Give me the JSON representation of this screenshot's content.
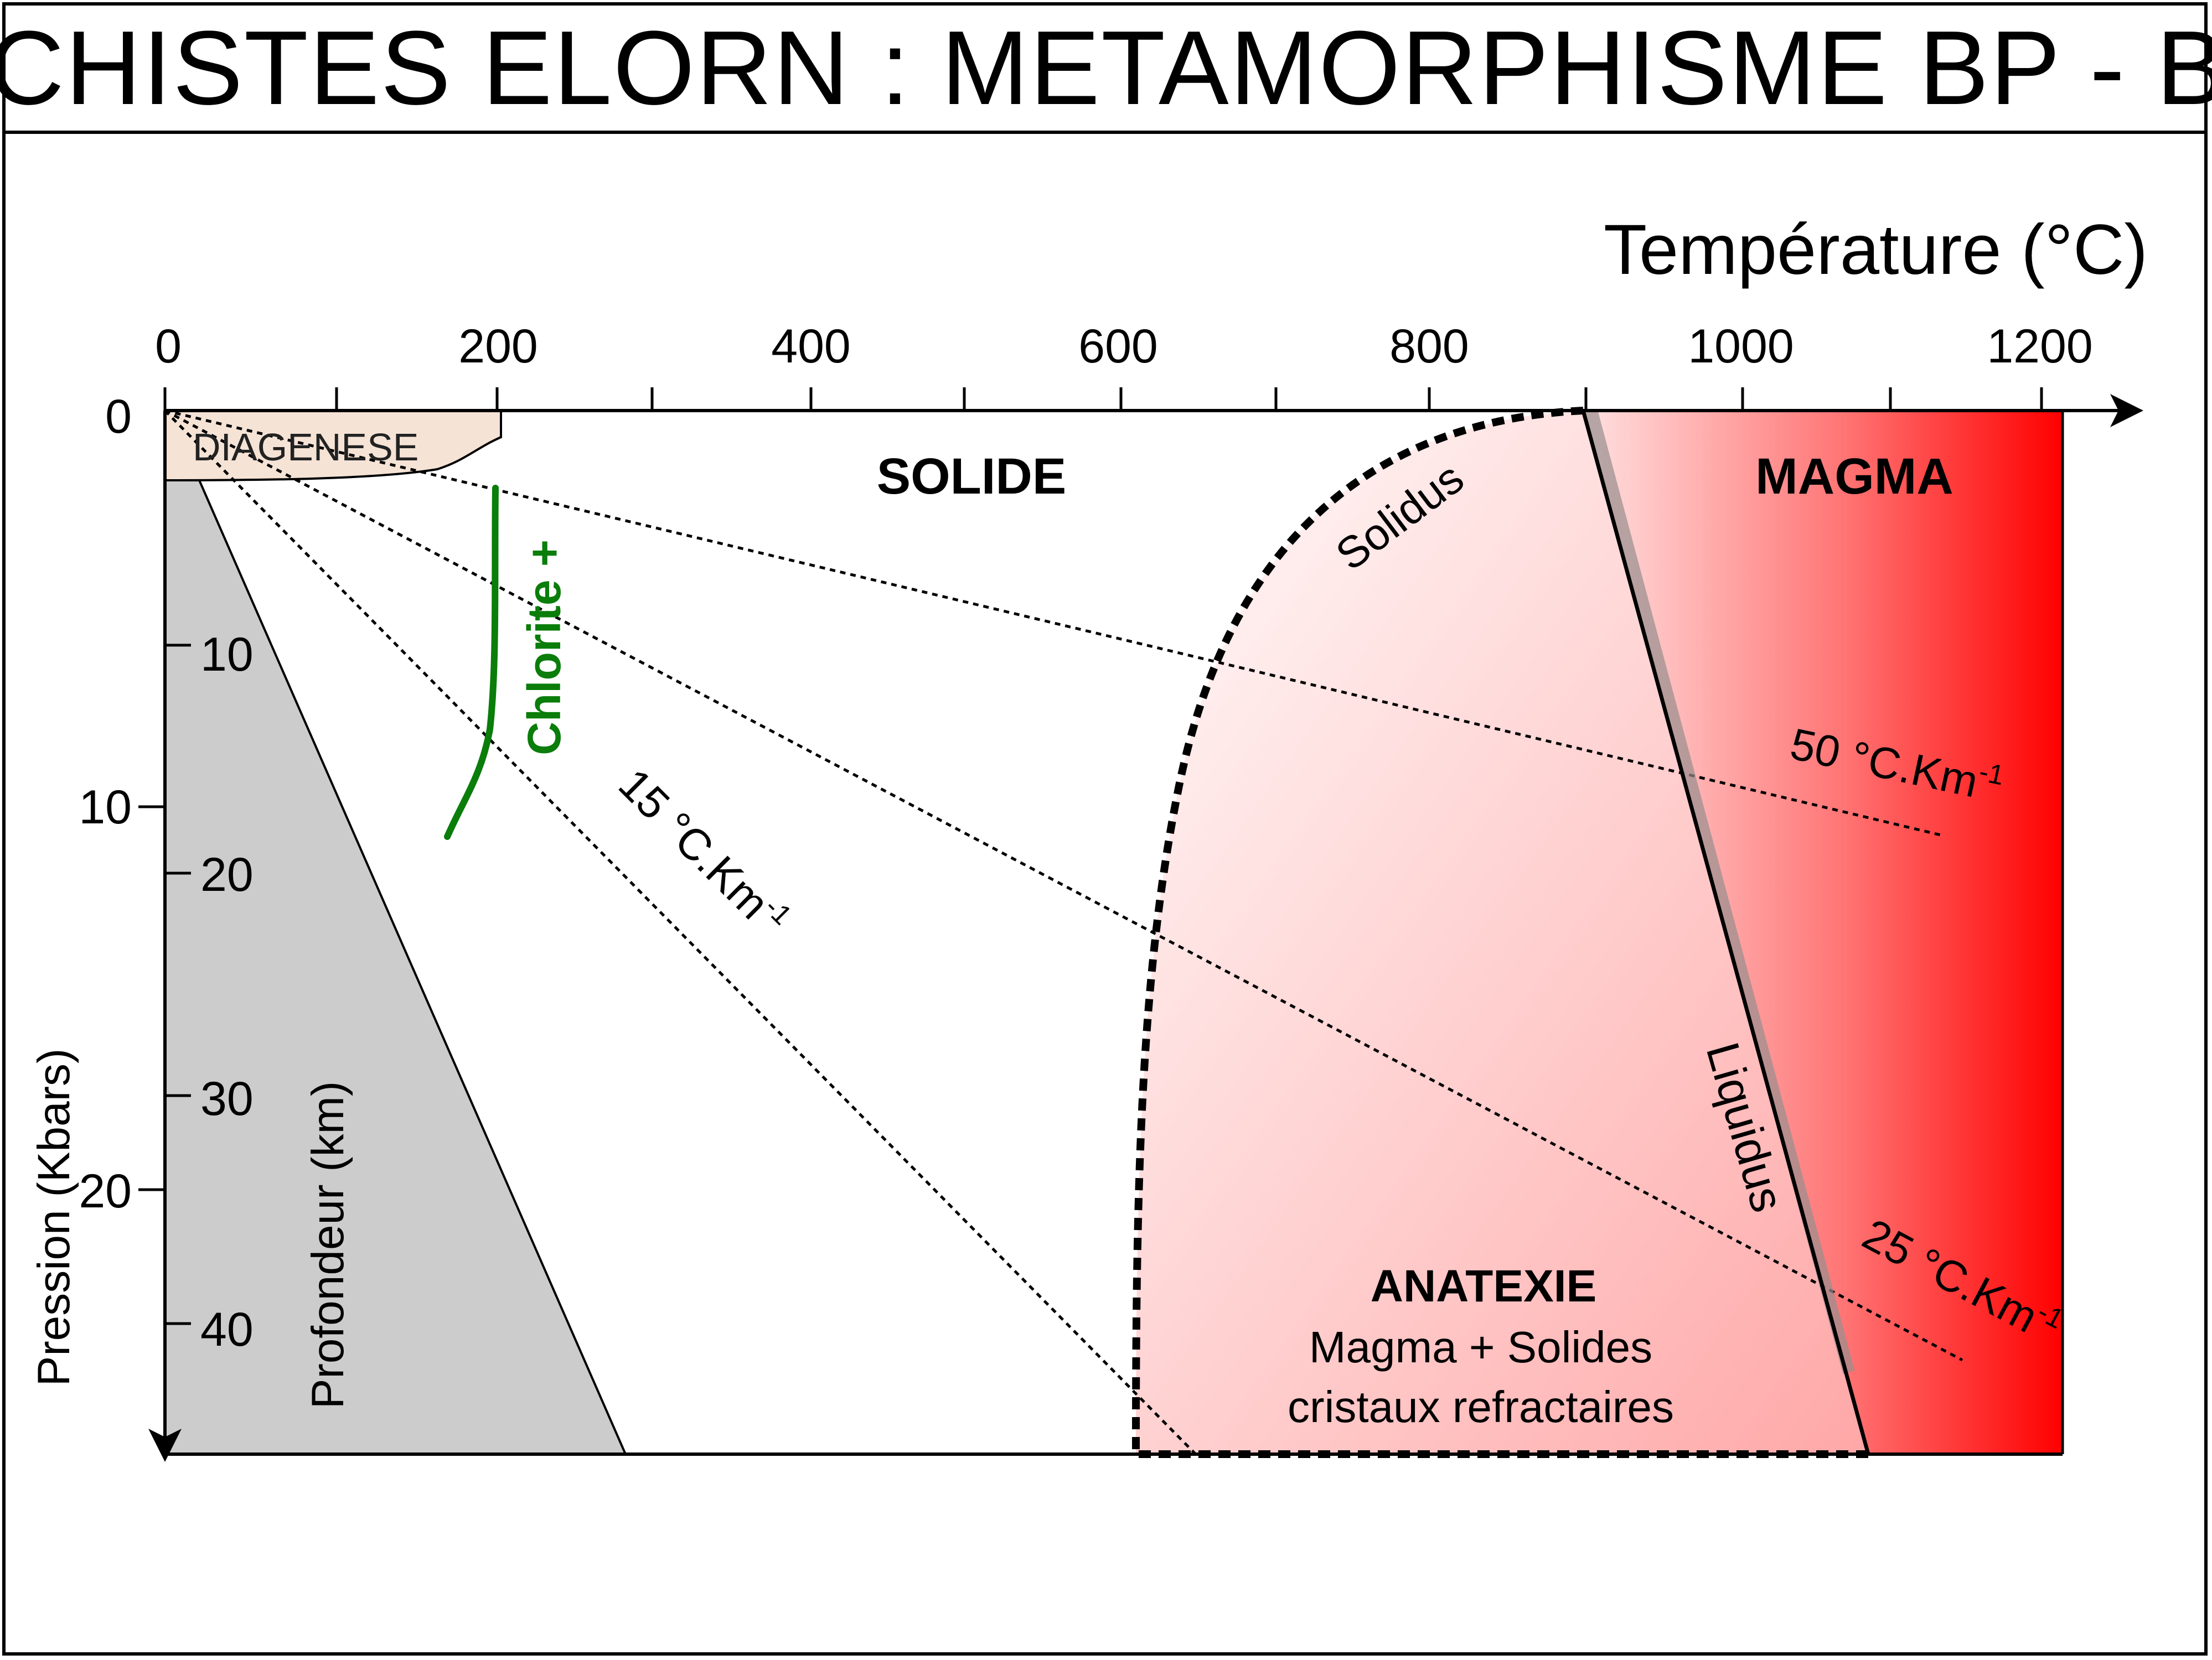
{
  "title": "SCHISTES ELORN : METAMORPHISME BP - BT",
  "axes": {
    "temperature": {
      "label": "Température (°C)",
      "ticks": [
        "0",
        "200",
        "400",
        "600",
        "800",
        "1000",
        "1200"
      ]
    },
    "pressure": {
      "label": "Pression (Kbars)",
      "ticks": [
        "0",
        "10",
        "20"
      ]
    },
    "depth": {
      "label": "Profondeur (km)",
      "ticks": [
        "10",
        "20",
        "30",
        "40"
      ]
    }
  },
  "fields": {
    "diagenese": "DIAGENESE",
    "solide": "SOLIDE",
    "magma": "MAGMA",
    "anatexie_title": "ANATEXIE",
    "anatexie_line1": "Magma + Solides",
    "anatexie_line2": "cristaux refractaires"
  },
  "curves": {
    "solidus": "Solidus",
    "liquidus": "Liquidus",
    "chlorite": "Chlorite +"
  },
  "gradients": [
    {
      "value": "15 °C.Km",
      "sup": "-1"
    },
    {
      "value": "25 °C.Km",
      "sup": "-1"
    },
    {
      "value": "50 °C.Km",
      "sup": "-1"
    }
  ],
  "colors": {
    "magma_red": "#ff0000",
    "chlorite_green": "#0a7d0a",
    "crust_gray": "#cccccc",
    "diagenese_fill": "#f5e3d6"
  }
}
